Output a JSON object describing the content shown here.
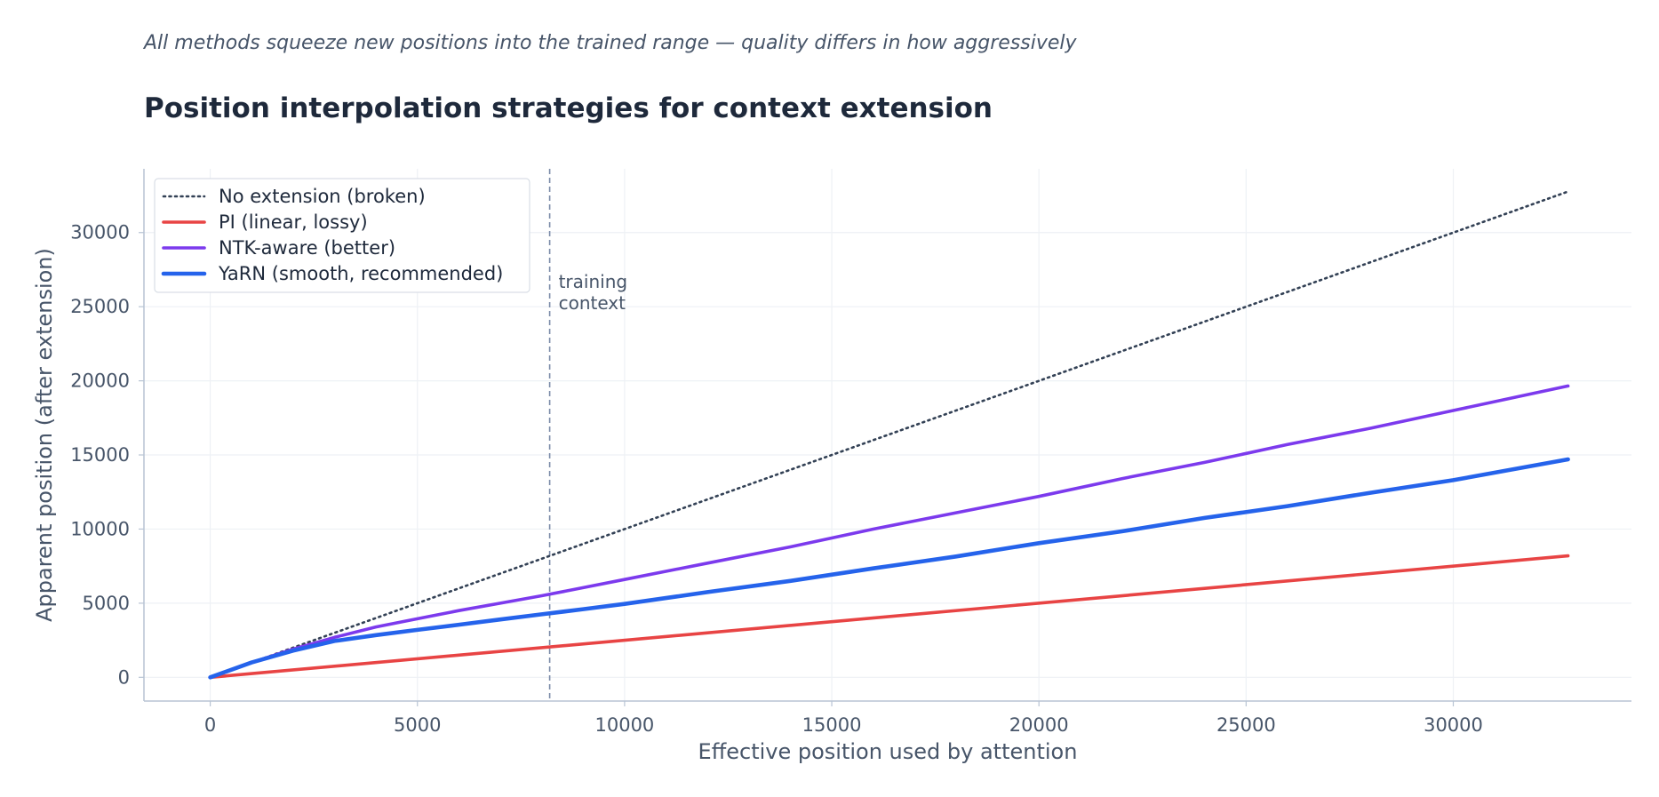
{
  "header": {
    "subtitle": "All methods squeeze new positions into the trained range — quality differs in how aggressively",
    "title": "Position interpolation strategies for context extension"
  },
  "chart_data": {
    "type": "line",
    "title": "Position interpolation strategies for context extension",
    "subtitle": "All methods squeeze new positions into the trained range — quality differs in how aggressively",
    "xlabel": "Effective position used by attention",
    "ylabel": "Apparent position (after extension)",
    "xlim": [
      -1600,
      34300
    ],
    "ylim": [
      -1600,
      34300
    ],
    "x_ticks": [
      0,
      5000,
      10000,
      15000,
      20000,
      25000,
      30000
    ],
    "y_ticks": [
      0,
      5000,
      10000,
      15000,
      20000,
      25000,
      30000
    ],
    "grid": true,
    "legend_position": "top-left",
    "annotations": [
      {
        "type": "vline",
        "x": 8192,
        "label": [
          "training",
          "context"
        ]
      }
    ],
    "series": [
      {
        "name": "No extension (broken)",
        "color": "#334155",
        "style": "dotted",
        "x": [
          0,
          32768
        ],
        "y": [
          0,
          32768
        ]
      },
      {
        "name": "PI (linear, lossy)",
        "color": "#e84444",
        "style": "solid",
        "x": [
          0,
          32768
        ],
        "y": [
          0,
          8192
        ]
      },
      {
        "name": "NTK-aware (better)",
        "color": "#7c3aed",
        "style": "solid",
        "x": [
          0,
          1000,
          2000,
          3000,
          4000,
          5000,
          6000,
          7000,
          8000,
          9000,
          10000,
          12000,
          14000,
          16000,
          18000,
          20000,
          22000,
          24000,
          26000,
          28000,
          30000,
          32768
        ],
        "y": [
          0,
          1000,
          1900,
          2700,
          3400,
          3950,
          4500,
          5000,
          5500,
          6050,
          6600,
          7700,
          8800,
          10000,
          11100,
          12200,
          13400,
          14500,
          15700,
          16800,
          18000,
          19650
        ]
      },
      {
        "name": "YaRN (smooth, recommended)",
        "color": "#2563eb",
        "style": "solid",
        "x": [
          0,
          1000,
          2000,
          3000,
          4000,
          5000,
          6000,
          7000,
          8000,
          9000,
          10000,
          12000,
          14000,
          16000,
          18000,
          20000,
          22000,
          24000,
          26000,
          28000,
          30000,
          32768
        ],
        "y": [
          0,
          1000,
          1800,
          2450,
          2850,
          3200,
          3550,
          3900,
          4250,
          4600,
          4950,
          5750,
          6500,
          7350,
          8150,
          9050,
          9850,
          10750,
          11550,
          12450,
          13300,
          14700
        ]
      }
    ]
  }
}
